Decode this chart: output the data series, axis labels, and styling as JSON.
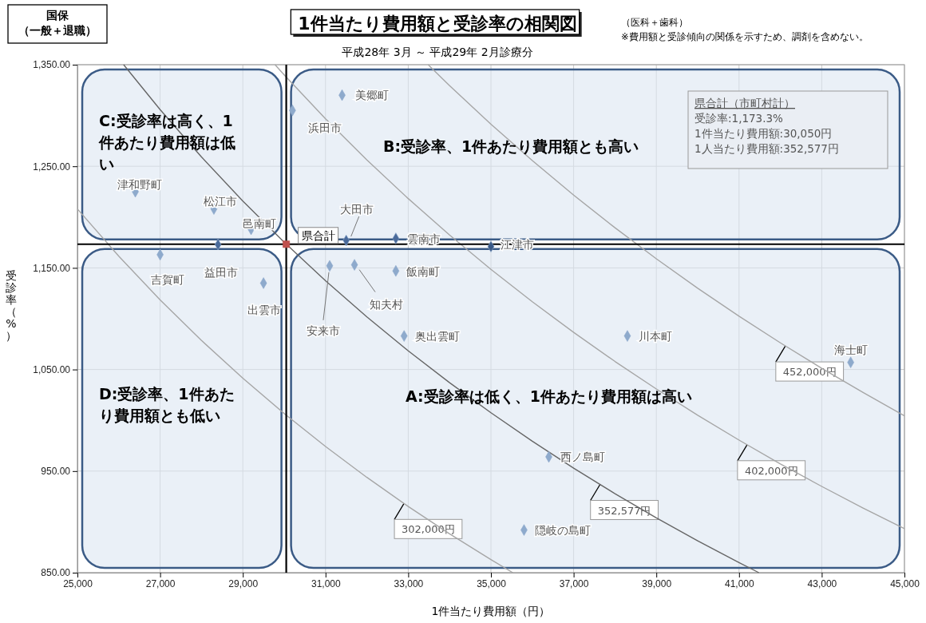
{
  "chart_data": {
    "type": "scatter",
    "title": "1件当たり費用額と受診率の相関図",
    "subtitle": "平成28年 3月 ～ 平成29年 2月診療分",
    "xlabel": "1件当たり費用額（円）",
    "ylabel": "受診率（%）",
    "xlim": [
      25000,
      45000
    ],
    "ylim": [
      850,
      1350
    ],
    "xticks": [
      {
        "value": 25000,
        "label": "25,000"
      },
      {
        "value": 27000,
        "label": "27,000"
      },
      {
        "value": 29000,
        "label": "29,000"
      },
      {
        "value": 31000,
        "label": "31,000"
      },
      {
        "value": 33000,
        "label": "33,000"
      },
      {
        "value": 35000,
        "label": "35,000"
      },
      {
        "value": 37000,
        "label": "37,000"
      },
      {
        "value": 39000,
        "label": "39,000"
      },
      {
        "value": 41000,
        "label": "41,000"
      },
      {
        "value": 43000,
        "label": "43,000"
      },
      {
        "value": 45000,
        "label": "45,000"
      }
    ],
    "yticks": [
      {
        "value": 850,
        "label": "850.00"
      },
      {
        "value": 950,
        "label": "950.00"
      },
      {
        "value": 1050,
        "label": "1,050.00"
      },
      {
        "value": 1150,
        "label": "1,150.00"
      },
      {
        "value": 1250,
        "label": "1,250.00"
      },
      {
        "value": 1350,
        "label": "1,350.00"
      }
    ],
    "grid": true,
    "marker": "diamond",
    "series": [
      {
        "type": "line",
        "marker": "none",
        "name": "302,000円",
        "color": "#a6a6a6",
        "x": [
          25000,
          26000,
          27000,
          28000,
          29000,
          30000,
          31000,
          32000,
          33000,
          34000,
          35000,
          35529
        ],
        "values": [
          1208,
          1161.5,
          1118.5,
          1078.6,
          1041.4,
          1006.7,
          974.2,
          943.8,
          915.2,
          888.2,
          862.9,
          850
        ]
      },
      {
        "type": "line",
        "marker": "none",
        "name": "352,577円",
        "color": "#666666",
        "x": [
          26117,
          27000,
          28000,
          29000,
          30000,
          31000,
          32000,
          33000,
          34000,
          35000,
          36000,
          37000,
          38000,
          39000,
          40000,
          41000,
          41480
        ],
        "values": [
          1350,
          1305.8,
          1259.2,
          1215.8,
          1175.3,
          1137.3,
          1101.8,
          1068.4,
          1037,
          1007.4,
          979.4,
          952.9,
          927.8,
          904,
          881.4,
          859.9,
          850
        ]
      },
      {
        "type": "line",
        "marker": "none",
        "name": "402,000円",
        "color": "#a6a6a6",
        "x": [
          29778,
          30000,
          31000,
          32000,
          33000,
          34000,
          35000,
          36000,
          37000,
          38000,
          39000,
          40000,
          41000,
          42000,
          43000,
          44000,
          45000
        ],
        "values": [
          1350,
          1340,
          1296.8,
          1256.3,
          1218.2,
          1182.4,
          1148.6,
          1116.7,
          1086.5,
          1057.9,
          1030.8,
          1005,
          980.5,
          957.1,
          934.9,
          913.6,
          893.3
        ]
      },
      {
        "type": "line",
        "marker": "none",
        "name": "452,000円",
        "color": "#a6a6a6",
        "x": [
          33481,
          34000,
          35000,
          36000,
          37000,
          38000,
          39000,
          40000,
          41000,
          42000,
          43000,
          44000,
          45000
        ],
        "values": [
          1350,
          1329.4,
          1291.4,
          1255.6,
          1221.6,
          1189.5,
          1159,
          1130,
          1102.4,
          1076.2,
          1051.2,
          1027.3,
          1004.4
        ]
      },
      {
        "color": "#8eaacc",
        "x": [
          31400,
          30200,
          26400,
          28300,
          29200,
          28400,
          27000,
          29500,
          31500,
          32700,
          35000,
          31100,
          31700,
          32700,
          32900,
          38300,
          43700,
          36400,
          35800
        ],
        "values": [
          1320,
          1305,
          1225,
          1208,
          1188,
          1173,
          1163,
          1135,
          1177,
          1179,
          1171,
          1152,
          1153,
          1147,
          1083,
          1083,
          1057,
          964,
          892
        ],
        "colors": [
          "#8eaacc",
          "#8eaacc",
          "#8eaacc",
          "#8eaacc",
          "#8eaacc",
          "#4a6a9a",
          "#8eaacc",
          "#8eaacc",
          "#4a6a9a",
          "#4a6a9a",
          "#3a5a88",
          "#8eaacc",
          "#8eaacc",
          "#8eaacc",
          "#8eaacc",
          "#8eaacc",
          "#8eaacc",
          "#8eaacc",
          "#8eaacc"
        ]
      },
      {
        "name": "県合計",
        "color": "#c0504d",
        "marker": "square",
        "x": [
          30050
        ],
        "values": [
          1173.3
        ]
      }
    ],
    "ref_lines": [
      {
        "axis": "x",
        "value": 30050,
        "color": "#000000"
      },
      {
        "axis": "y",
        "value": 1173.3,
        "color": "#000000"
      }
    ],
    "annotations": [
      "国保（一般＋退職）",
      "（医科＋歯科）",
      "※費用額と受診傾向の関係を示すため、調剤を含めない。",
      "県合計（市町村計）",
      "受診率:1,173.3%",
      "1件当たり費用額:30,050円",
      "1人当たり費用額:352,577円",
      "C:受診率は高く、1件あたり費用額は低い",
      "B:受診率、1件あたり費用額とも高い",
      "D:受診率、1件あたり費用額とも低い",
      "A:受診率は低く、1件あたり費用額は高い",
      {
        "text": "美郷町",
        "x": 31400,
        "y": 1320
      },
      {
        "text": "浜田市",
        "x": 30200,
        "y": 1305
      },
      {
        "text": "津和野町",
        "x": 26400,
        "y": 1225
      },
      {
        "text": "松江市",
        "x": 28300,
        "y": 1208
      },
      {
        "text": "邑南町",
        "x": 29200,
        "y": 1188
      },
      {
        "text": "益田市",
        "x": 28400,
        "y": 1173
      },
      {
        "text": "吉賀町",
        "x": 27000,
        "y": 1163
      },
      {
        "text": "出雲市",
        "x": 29500,
        "y": 1135
      },
      {
        "text": "大田市",
        "x": 31500,
        "y": 1177
      },
      {
        "text": "雲南市",
        "x": 32700,
        "y": 1179
      },
      {
        "text": "江津市",
        "x": 35000,
        "y": 1171
      },
      {
        "text": "安来市",
        "x": 31100,
        "y": 1152
      },
      {
        "text": "知夫村",
        "x": 31700,
        "y": 1153
      },
      {
        "text": "飯南町",
        "x": 32700,
        "y": 1147
      },
      {
        "text": "奥出雲町",
        "x": 32900,
        "y": 1083
      },
      {
        "text": "川本町",
        "x": 38300,
        "y": 1083
      },
      {
        "text": "海士町",
        "x": 43700,
        "y": 1057
      },
      {
        "text": "西ノ島町",
        "x": 36400,
        "y": 964
      },
      {
        "text": "隠岐の島町",
        "x": 35800,
        "y": 892
      }
    ]
  }
}
